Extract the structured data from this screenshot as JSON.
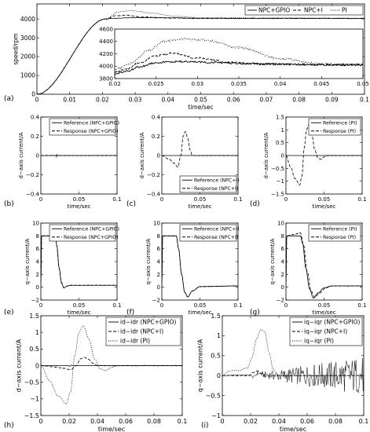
{
  "figure": {
    "background": "#ffffff",
    "line_color": "#000000"
  },
  "chart_data": [
    {
      "id": "a",
      "panel_label": "(a)",
      "type": "line",
      "xlabel": "time/sec",
      "ylabel": "speed/rpm",
      "xlim": [
        0,
        0.1
      ],
      "ylim": [
        0,
        4800
      ],
      "xticks": [
        0,
        0.01,
        0.02,
        0.03,
        0.04,
        0.05,
        0.06,
        0.07,
        0.08,
        0.09,
        0.1
      ],
      "xtick_labels": [
        "0",
        "0.01",
        "0.02",
        "0.03",
        "0.04",
        "0.05",
        "0.06",
        "0.07",
        "0.08",
        "0.09",
        "0.1"
      ],
      "yticks": [
        0,
        1000,
        2000,
        3000,
        4000
      ],
      "ytick_labels": [
        "0",
        "1000",
        "2000",
        "3000",
        "4000"
      ],
      "legend_position": "top-right",
      "series": [
        {
          "name": "NPC+GPIO",
          "style": "solid",
          "x": [
            0,
            0.021,
            0.024,
            0.03,
            0.04,
            0.05,
            0.1
          ],
          "y": [
            0,
            4000,
            4040,
            4075,
            4065,
            4035,
            4030
          ]
        },
        {
          "name": "NPC+I",
          "style": "dashed",
          "x": [
            0,
            0.021,
            0.024,
            0.027,
            0.032,
            0.04,
            0.05,
            0.1
          ],
          "y": [
            0,
            4000,
            4170,
            4200,
            4110,
            4050,
            4030,
            4030
          ]
        },
        {
          "name": "PI",
          "style": "dotted",
          "x": [
            0,
            0.021,
            0.025,
            0.029,
            0.035,
            0.042,
            0.05,
            0.1
          ],
          "y": [
            0,
            4000,
            4380,
            4440,
            4320,
            4150,
            4060,
            4040
          ]
        }
      ],
      "inset": {
        "xlim": [
          0.02,
          0.05
        ],
        "ylim": [
          3800,
          4600
        ],
        "xticks": [
          0.02,
          0.025,
          0.03,
          0.035,
          0.04,
          0.045,
          0.05
        ],
        "xtick_labels": [
          "0.02",
          "0.025",
          "0.03",
          "0.035",
          "0.04",
          "0.045",
          "0.05"
        ],
        "yticks": [
          3800,
          4000,
          4200,
          4400,
          4600
        ],
        "ytick_labels": [
          "3800",
          "4000",
          "4200",
          "4400",
          "4600"
        ],
        "series": [
          {
            "name": "NPC+GPIO",
            "style": "solid",
            "x": [
              0.02,
              0.0215,
              0.023,
              0.025,
              0.028,
              0.032,
              0.036,
              0.04,
              0.045,
              0.05
            ],
            "y": [
              3870,
              3920,
              3990,
              4060,
              4075,
              4060,
              4040,
              4030,
              4020,
              4020
            ]
          },
          {
            "name": "NPC+I",
            "style": "dashed",
            "x": [
              0.02,
              0.0215,
              0.023,
              0.025,
              0.027,
              0.03,
              0.034,
              0.038,
              0.045,
              0.05
            ],
            "y": [
              3900,
              3960,
              4060,
              4170,
              4210,
              4130,
              4060,
              4035,
              4025,
              4025
            ]
          },
          {
            "name": "PI",
            "style": "dotted",
            "x": [
              0.02,
              0.022,
              0.024,
              0.026,
              0.028,
              0.031,
              0.035,
              0.04,
              0.045,
              0.05
            ],
            "y": [
              3950,
              4050,
              4250,
              4400,
              4440,
              4420,
              4300,
              4120,
              4040,
              4030
            ]
          }
        ]
      }
    },
    {
      "id": "b",
      "panel_label": "(b)",
      "type": "line",
      "xlabel": "time/sec",
      "ylabel": "d−axis current/A",
      "xlim": [
        0,
        0.1
      ],
      "ylim": [
        -0.4,
        0.4
      ],
      "xticks": [
        0,
        0.05,
        0.1
      ],
      "xtick_labels": [
        "0",
        "0.05",
        "0.1"
      ],
      "yticks": [
        -0.4,
        -0.2,
        0,
        0.2,
        0.4
      ],
      "ytick_labels": [
        "−0.4",
        "−0.2",
        "0",
        "0.2",
        "0.4"
      ],
      "legend_position": "top-right",
      "series": [
        {
          "name": "Reference (NPC+GPIO)",
          "style": "solid",
          "x": [
            0,
            0.1
          ],
          "y": [
            0,
            0
          ]
        },
        {
          "name": "Response (NPC+GPIO)",
          "style": "dashed",
          "x": [
            0,
            0.0195,
            0.0205,
            0.0215,
            0.023,
            0.1
          ],
          "y": [
            0,
            0,
            -0.015,
            0.008,
            0,
            0
          ]
        }
      ]
    },
    {
      "id": "c",
      "panel_label": "(c)",
      "type": "line",
      "xlabel": "time/sec",
      "ylabel": "d−axis current/A",
      "xlim": [
        0,
        0.1
      ],
      "ylim": [
        -0.4,
        0.4
      ],
      "xticks": [
        0,
        0.05,
        0.1
      ],
      "xtick_labels": [
        "0",
        "0.05",
        "0.1"
      ],
      "yticks": [
        -0.4,
        -0.2,
        0,
        0.2,
        0.4
      ],
      "ytick_labels": [
        "−0.4",
        "−0.2",
        "0",
        "0.2",
        "0.4"
      ],
      "legend_position": "bottom-right",
      "series": [
        {
          "name": "Reference (NPC+I)",
          "style": "solid",
          "x": [
            0,
            0.1
          ],
          "y": [
            0,
            0
          ]
        },
        {
          "name": "Response (NPC+I)",
          "style": "dashed",
          "x": [
            0,
            0.01,
            0.016,
            0.021,
            0.025,
            0.028,
            0.031,
            0.034,
            0.037,
            0.04,
            0.045,
            0.1
          ],
          "y": [
            0,
            -0.04,
            -0.08,
            -0.12,
            0,
            0.2,
            0.25,
            0.18,
            0.06,
            0,
            0,
            0
          ]
        }
      ]
    },
    {
      "id": "d",
      "panel_label": "(d)",
      "type": "line",
      "xlabel": "time/sec",
      "ylabel": "d−axis current/A",
      "xlim": [
        0,
        0.1
      ],
      "ylim": [
        -1.5,
        1.5
      ],
      "xticks": [
        0,
        0.05,
        0.1
      ],
      "xtick_labels": [
        "0",
        "0.05",
        "0.1"
      ],
      "yticks": [
        -1.5,
        -1,
        -0.5,
        0,
        0.5,
        1,
        1.5
      ],
      "ytick_labels": [
        "−1.5",
        "−1",
        "−0.5",
        "0",
        "0.5",
        "1",
        "1.5"
      ],
      "legend_position": "top-right",
      "series": [
        {
          "name": "Reference (PI)",
          "style": "solid",
          "x": [
            0,
            0.1
          ],
          "y": [
            0,
            0
          ]
        },
        {
          "name": "Response (PI)",
          "style": "dashed",
          "x": [
            0,
            0.006,
            0.012,
            0.018,
            0.021,
            0.024,
            0.027,
            0.03,
            0.034,
            0.038,
            0.042,
            0.046,
            0.05,
            0.055,
            0.1
          ],
          "y": [
            0,
            -0.45,
            -0.9,
            -1.15,
            -0.8,
            0.3,
            1.0,
            1.2,
            0.8,
            0.2,
            -0.1,
            -0.15,
            -0.05,
            0,
            0
          ]
        }
      ]
    },
    {
      "id": "e",
      "panel_label": "(e)",
      "type": "line",
      "xlabel": "time/sec",
      "ylabel": "q−axis current/A",
      "xlim": [
        0,
        0.1
      ],
      "ylim": [
        -2,
        10
      ],
      "xticks": [
        0,
        0.05,
        0.1
      ],
      "xtick_labels": [
        "0",
        "0.05",
        "0.1"
      ],
      "yticks": [
        -2,
        0,
        2,
        4,
        6,
        8,
        10
      ],
      "ytick_labels": [
        "−2",
        "0",
        "2",
        "4",
        "6",
        "8",
        "10"
      ],
      "legend_position": "top-right",
      "series": [
        {
          "name": "Reference (NPC+GPIO)",
          "style": "solid",
          "x": [
            0,
            0.001,
            0.019,
            0.021,
            0.024,
            0.027,
            0.03,
            0.035,
            0.04,
            0.1
          ],
          "y": [
            0,
            8,
            8,
            6.5,
            3.0,
            0.8,
            -0.1,
            0.2,
            0.3,
            0.3
          ]
        },
        {
          "name": "Response (NPC+GPIO)",
          "style": "dashed",
          "x": [
            0,
            0.001,
            0.019,
            0.021,
            0.024,
            0.027,
            0.03,
            0.035,
            0.04,
            0.1
          ],
          "y": [
            0,
            8,
            8,
            6.4,
            2.9,
            0.7,
            -0.1,
            0.2,
            0.3,
            0.3
          ]
        }
      ]
    },
    {
      "id": "f",
      "panel_label": "(f)",
      "type": "line",
      "xlabel": "time/sec",
      "ylabel": "q−axis current/A",
      "xlim": [
        0,
        0.1
      ],
      "ylim": [
        -2,
        10
      ],
      "xticks": [
        0,
        0.05,
        0.1
      ],
      "xtick_labels": [
        "0",
        "0.05",
        "0.1"
      ],
      "yticks": [
        -2,
        0,
        2,
        4,
        6,
        8,
        10
      ],
      "ytick_labels": [
        "−2",
        "0",
        "2",
        "4",
        "6",
        "8",
        "10"
      ],
      "legend_position": "top-right",
      "series": [
        {
          "name": "Reference (NPC+I)",
          "style": "solid",
          "x": [
            0,
            0.001,
            0.019,
            0.022,
            0.026,
            0.03,
            0.034,
            0.04,
            0.05,
            0.1
          ],
          "y": [
            0,
            8,
            8,
            6.0,
            2.0,
            -0.8,
            -1.5,
            -0.6,
            0.1,
            0.2
          ]
        },
        {
          "name": "Response (NPC+I)",
          "style": "dashed",
          "x": [
            0,
            0.001,
            0.019,
            0.022,
            0.026,
            0.03,
            0.034,
            0.04,
            0.05,
            0.1
          ],
          "y": [
            0,
            8,
            8,
            6.0,
            2.0,
            -0.8,
            -1.5,
            -0.6,
            0.1,
            0.2
          ]
        }
      ]
    },
    {
      "id": "g",
      "panel_label": "(g)",
      "type": "line",
      "xlabel": "time/sec",
      "ylabel": "q−axis current/A",
      "xlim": [
        0,
        0.1
      ],
      "ylim": [
        -2,
        10
      ],
      "xticks": [
        0,
        0.05,
        0.1
      ],
      "xtick_labels": [
        "0",
        "0.05",
        "0.1"
      ],
      "yticks": [
        -2,
        0,
        2,
        4,
        6,
        8,
        10
      ],
      "ytick_labels": [
        "−2",
        "0",
        "2",
        "4",
        "6",
        "8",
        "10"
      ],
      "legend_position": "top-right",
      "series": [
        {
          "name": "Reference (PI)",
          "style": "solid",
          "x": [
            0,
            0.001,
            0.019,
            0.022,
            0.026,
            0.031,
            0.036,
            0.042,
            0.05,
            0.06,
            0.1
          ],
          "y": [
            0,
            8,
            8,
            6.8,
            3.0,
            -0.3,
            -1.7,
            -0.9,
            -0.1,
            0.2,
            0.2
          ]
        },
        {
          "name": "Response (PI)",
          "style": "dashed",
          "x": [
            0,
            0.001,
            0.01,
            0.019,
            0.023,
            0.028,
            0.033,
            0.038,
            0.044,
            0.052,
            0.06,
            0.1
          ],
          "y": [
            0,
            8,
            8.2,
            8.5,
            6.6,
            2.4,
            -0.6,
            -1.6,
            -0.9,
            -0.1,
            0.2,
            0.2
          ]
        }
      ]
    },
    {
      "id": "h",
      "panel_label": "(h)",
      "type": "line",
      "xlabel": "time/sec",
      "ylabel": "d−axis current/A",
      "xlim": [
        0,
        0.1
      ],
      "ylim": [
        -1.5,
        1.5
      ],
      "xticks": [
        0,
        0.02,
        0.04,
        0.06,
        0.08,
        0.1
      ],
      "xtick_labels": [
        "0",
        "0.02",
        "0.04",
        "0.06",
        "0.08",
        "0.1"
      ],
      "yticks": [
        -1.5,
        -1,
        -0.5,
        0,
        0.5,
        1,
        1.5
      ],
      "ytick_labels": [
        "−1.5",
        "−1",
        "−0.5",
        "0",
        "0.5",
        "1",
        "1.5"
      ],
      "legend_position": "top-right",
      "series": [
        {
          "name": "id−idr (NPC+GPIO)",
          "style": "solid",
          "x": [
            0,
            0.0195,
            0.0205,
            0.0215,
            0.023,
            0.1
          ],
          "y": [
            0,
            0,
            -0.02,
            0.01,
            0,
            0
          ]
        },
        {
          "name": "id−idr (NPC+I)",
          "style": "dashed",
          "x": [
            0,
            0.01,
            0.016,
            0.021,
            0.025,
            0.028,
            0.031,
            0.034,
            0.037,
            0.04,
            0.045,
            0.1
          ],
          "y": [
            0,
            -0.04,
            -0.08,
            -0.12,
            0,
            0.2,
            0.25,
            0.18,
            0.06,
            0,
            0,
            0
          ]
        },
        {
          "name": "id−idr (PI)",
          "style": "dotted",
          "x": [
            0,
            0.006,
            0.012,
            0.018,
            0.021,
            0.024,
            0.027,
            0.03,
            0.034,
            0.038,
            0.042,
            0.046,
            0.05,
            0.055,
            0.1
          ],
          "y": [
            0,
            -0.45,
            -0.9,
            -1.15,
            -0.8,
            0.3,
            1.0,
            1.2,
            0.8,
            0.2,
            -0.1,
            -0.15,
            -0.05,
            0,
            0
          ]
        }
      ]
    },
    {
      "id": "i",
      "panel_label": "(i)",
      "type": "line",
      "xlabel": "time/sec",
      "ylabel": "q−axis current/A",
      "xlim": [
        0,
        0.1
      ],
      "ylim": [
        -1,
        1.5
      ],
      "xticks": [
        0,
        0.02,
        0.04,
        0.06,
        0.08,
        0.1
      ],
      "xtick_labels": [
        "0",
        "0.02",
        "0.04",
        "0.06",
        "0.08",
        "0.1"
      ],
      "yticks": [
        -1,
        -0.5,
        0,
        0.5,
        1,
        1.5
      ],
      "ytick_labels": [
        "−1",
        "−0.5",
        "0",
        "0.5",
        "1",
        "1.5"
      ],
      "legend_position": "top-right",
      "series": [
        {
          "name": "iq−iqr (NPC+GPIO)",
          "style": "solid",
          "noise_growth": true,
          "x": [
            0,
            0.01,
            0.019,
            0.022,
            0.025,
            0.03,
            0.04,
            0.05,
            0.1
          ],
          "y": [
            0,
            0.02,
            0.02,
            -0.04,
            0.06,
            0.02,
            0,
            0,
            0
          ]
        },
        {
          "name": "iq−iqr (NPC+I)",
          "style": "dashed",
          "x": [
            0,
            0.019,
            0.022,
            0.025,
            0.028,
            0.031,
            0.035,
            0.04,
            0.1
          ],
          "y": [
            0,
            0,
            0.08,
            0.12,
            0.05,
            -0.02,
            0,
            0,
            0
          ]
        },
        {
          "name": "iq−iqr (PI)",
          "style": "dotted",
          "x": [
            0,
            0.005,
            0.012,
            0.018,
            0.021,
            0.024,
            0.027,
            0.03,
            0.033,
            0.036,
            0.04,
            0.1
          ],
          "y": [
            0,
            0.12,
            0.13,
            0.2,
            0.45,
            0.9,
            1.15,
            1.1,
            0.6,
            0.15,
            0,
            0
          ]
        }
      ]
    }
  ]
}
